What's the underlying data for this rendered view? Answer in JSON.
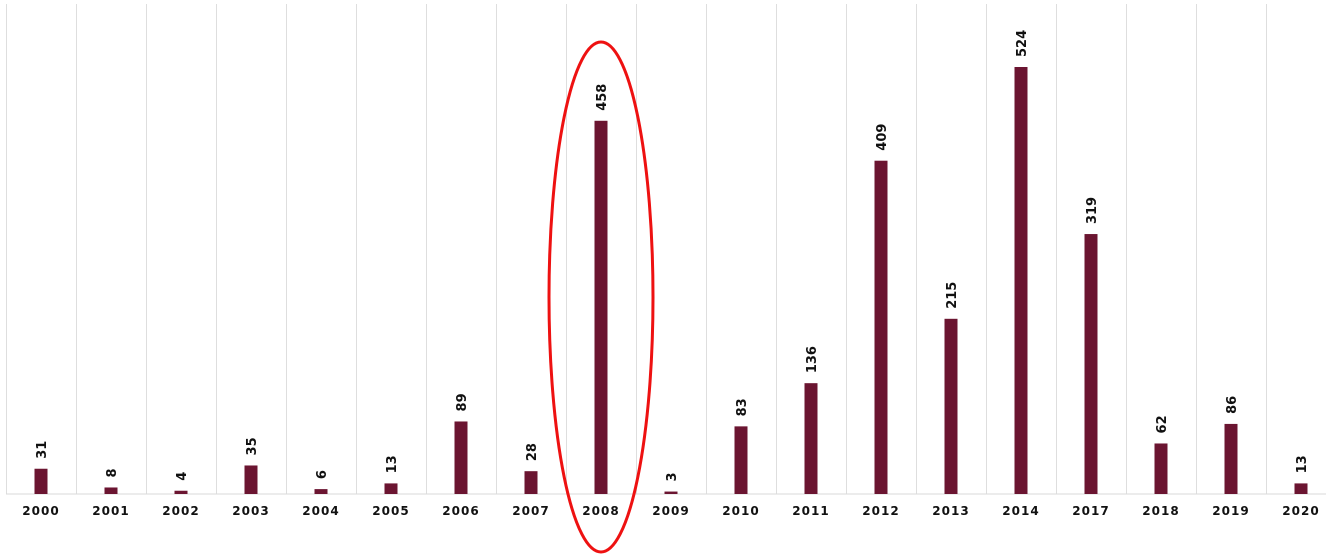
{
  "chart_data": {
    "type": "bar",
    "categories": [
      "2000",
      "2001",
      "2002",
      "2003",
      "2004",
      "2005",
      "2006",
      "2007",
      "2008",
      "2009",
      "2010",
      "2011",
      "2012",
      "2013",
      "2014",
      "2017",
      "2018",
      "2019",
      "2020"
    ],
    "values": [
      31,
      8,
      4,
      35,
      6,
      13,
      89,
      28,
      458,
      3,
      83,
      136,
      409,
      215,
      524,
      319,
      62,
      86,
      13
    ],
    "ylim": [
      0,
      524
    ],
    "grid": true,
    "highlighted_category": "2008",
    "colors": {
      "bar": "#6b1531",
      "highlight": "#ee1111",
      "grid": "#dedede",
      "text": "#111111"
    }
  }
}
